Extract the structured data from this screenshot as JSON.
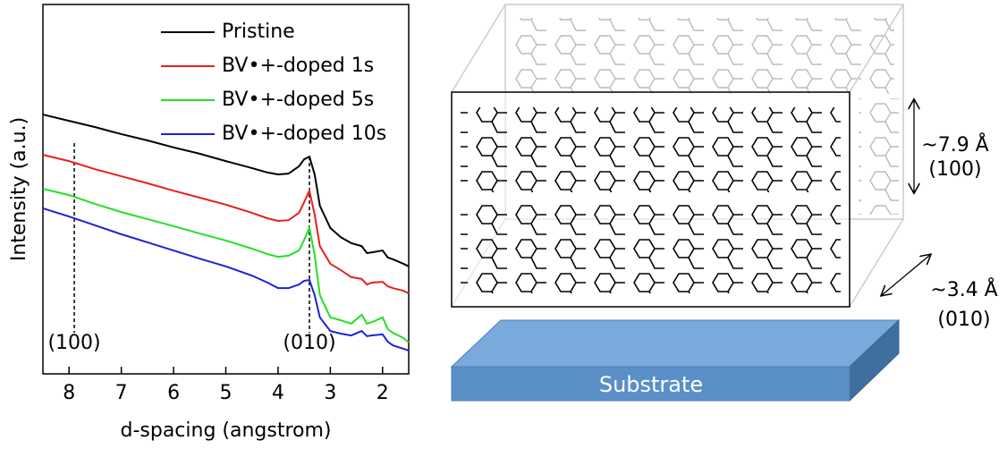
{
  "chart_data": {
    "type": "line",
    "x_label": "d-spacing (angstrom)",
    "y_label": "Intensity (a.u.)",
    "xlim": [
      8.5,
      1.5
    ],
    "xticks": [
      8,
      7,
      6,
      5,
      4,
      3,
      2
    ],
    "ylim": [
      0,
      100
    ],
    "x": [
      8.5,
      8,
      7.5,
      7,
      6.5,
      6,
      5.5,
      5,
      4.5,
      4.2,
      4,
      3.8,
      3.6,
      3.5,
      3.4,
      3.3,
      3.2,
      3.0,
      2.8,
      2.6,
      2.4,
      2.3,
      2.2,
      2.0,
      1.9,
      1.8,
      1.6,
      1.5
    ],
    "series": [
      {
        "name": "Pristine",
        "color": "#000000",
        "values": [
          70.2,
          68.5,
          66.8,
          64.9,
          63.2,
          61.3,
          59.6,
          57.6,
          55.7,
          54.5,
          54.0,
          54.2,
          56.2,
          58.1,
          58.8,
          54.0,
          45.5,
          39.5,
          37.0,
          35.4,
          34.6,
          32.7,
          32.9,
          33.4,
          31.5,
          31.0,
          29.8,
          29.1
        ]
      },
      {
        "name": "BV•+-doped 1s",
        "color": "#e8201a",
        "values": [
          59.3,
          57.6,
          55.4,
          53.5,
          51.6,
          49.6,
          47.7,
          45.8,
          43.6,
          42.1,
          41.4,
          41.6,
          43.6,
          46.5,
          49.6,
          43.1,
          34.6,
          29.8,
          28.1,
          26.2,
          25.7,
          24.2,
          24.7,
          24.9,
          23.7,
          23.2,
          22.5,
          21.8
        ]
      },
      {
        "name": "BV•+-doped 5s",
        "color": "#22e022",
        "values": [
          50.1,
          48.4,
          46.0,
          43.8,
          41.9,
          40.0,
          38.0,
          36.1,
          33.9,
          32.4,
          31.7,
          32.0,
          33.4,
          36.3,
          39.5,
          32.2,
          21.3,
          15.3,
          14.5,
          13.6,
          16.0,
          13.6,
          14.0,
          15.3,
          12.1,
          11.1,
          9.7,
          8.5
        ]
      },
      {
        "name": "BV•+-doped 10s",
        "color": "#1a22d8",
        "values": [
          44.8,
          42.6,
          40.2,
          37.8,
          35.6,
          33.4,
          31.2,
          29.1,
          26.6,
          24.7,
          23.2,
          23.2,
          24.2,
          25.2,
          25.4,
          21.3,
          15.3,
          11.6,
          10.9,
          10.4,
          11.6,
          10.2,
          10.4,
          10.7,
          8.7,
          7.7,
          6.8,
          6.3
        ]
      }
    ],
    "annotations": [
      {
        "text": "(100)",
        "x": 7.9
      },
      {
        "text": "(010)",
        "x": 3.4
      }
    ]
  },
  "diagram": {
    "spacing_100": "~7.9 Å",
    "label_100": "(100)",
    "spacing_010": "~3.4 Å",
    "label_010": "(010)",
    "substrate": "Substrate"
  }
}
